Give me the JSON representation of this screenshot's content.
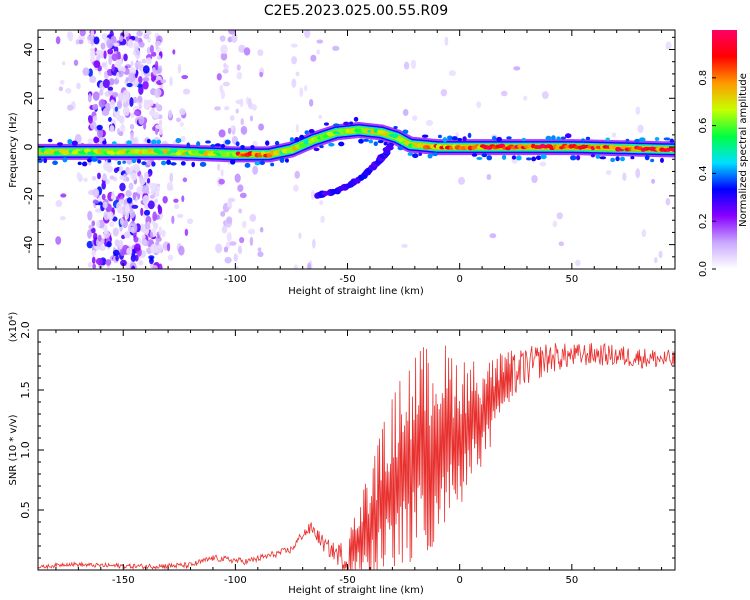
{
  "title": "C2E5.2023.025.00.55.R09",
  "chart_data": [
    {
      "type": "heatmap",
      "name": "spectrogram",
      "xlabel": "Height of straight line (km)",
      "ylabel": "Frequency (Hz)",
      "xlim": [
        -188,
        96
      ],
      "ylim": [
        -50,
        48
      ],
      "xticks": [
        -150,
        -100,
        -50,
        0,
        50
      ],
      "yticks": [
        -40,
        -20,
        0,
        20,
        40
      ],
      "ridge": [
        {
          "x": -188,
          "y": -2
        },
        {
          "x": -150,
          "y": -2
        },
        {
          "x": -130,
          "y": -2
        },
        {
          "x": -100,
          "y": -3
        },
        {
          "x": -85,
          "y": -3
        },
        {
          "x": -75,
          "y": -1
        },
        {
          "x": -65,
          "y": 3
        },
        {
          "x": -55,
          "y": 6
        },
        {
          "x": -45,
          "y": 7
        },
        {
          "x": -35,
          "y": 6
        },
        {
          "x": -28,
          "y": 4
        },
        {
          "x": -22,
          "y": 1
        },
        {
          "x": -10,
          "y": 0
        },
        {
          "x": 10,
          "y": 0
        },
        {
          "x": 50,
          "y": 0
        },
        {
          "x": 96,
          "y": -1
        }
      ],
      "branch": [
        {
          "x": -64,
          "y": -20
        },
        {
          "x": -55,
          "y": -18
        },
        {
          "x": -48,
          "y": -15
        },
        {
          "x": -42,
          "y": -11
        },
        {
          "x": -37,
          "y": -7
        },
        {
          "x": -33,
          "y": -3
        },
        {
          "x": -31,
          "y": 1
        }
      ],
      "colorbar": {
        "label": "Normalized spectral amplitude",
        "ticks": [
          "0.0",
          "0.2",
          "0.4",
          "0.6",
          "0.8"
        ],
        "tick_values": [
          0,
          0.2,
          0.4,
          0.6,
          0.8
        ],
        "range": [
          0,
          1
        ],
        "colors": [
          "#ffffff",
          "#c9a8ff",
          "#8800ff",
          "#0000ff",
          "#00e0ff",
          "#00ff40",
          "#c8ff00",
          "#ff9900",
          "#ff0000",
          "#ff0066"
        ]
      }
    },
    {
      "type": "line",
      "name": "snr",
      "xlabel": "Height of straight line (km)",
      "ylabel": "SNR (10 * v/v)",
      "multiplier": "(x10⁴)",
      "xlim": [
        -188,
        96
      ],
      "ylim": [
        0,
        2.0
      ],
      "xticks": [
        -150,
        -100,
        -50,
        0,
        50
      ],
      "yticks": [
        0.5,
        1.0,
        1.5,
        2.0
      ],
      "ytick_labels": [
        "0.5",
        "1.0",
        "1.5",
        "2.0"
      ],
      "color": "#e8312f",
      "envelope": [
        {
          "x": -188,
          "y": 0.02
        },
        {
          "x": -175,
          "y": 0.05
        },
        {
          "x": -165,
          "y": 0.04
        },
        {
          "x": -140,
          "y": 0.03
        },
        {
          "x": -120,
          "y": 0.04
        },
        {
          "x": -110,
          "y": 0.1
        },
        {
          "x": -95,
          "y": 0.07
        },
        {
          "x": -85,
          "y": 0.12
        },
        {
          "x": -75,
          "y": 0.17
        },
        {
          "x": -70,
          "y": 0.3
        },
        {
          "x": -66,
          "y": 0.35
        },
        {
          "x": -60,
          "y": 0.2
        },
        {
          "x": -50,
          "y": 0.08
        },
        {
          "x": -45,
          "y": 0.25
        },
        {
          "x": -38,
          "y": 0.45
        },
        {
          "x": -30,
          "y": 0.7
        },
        {
          "x": -22,
          "y": 0.9
        },
        {
          "x": -15,
          "y": 1.0
        },
        {
          "x": -8,
          "y": 1.1
        },
        {
          "x": 0,
          "y": 1.15
        },
        {
          "x": 10,
          "y": 1.3
        },
        {
          "x": 20,
          "y": 1.55
        },
        {
          "x": 28,
          "y": 1.68
        },
        {
          "x": 40,
          "y": 1.77
        },
        {
          "x": 60,
          "y": 1.8
        },
        {
          "x": 80,
          "y": 1.77
        },
        {
          "x": 96,
          "y": 1.75
        }
      ],
      "noise": [
        {
          "x": -188,
          "a": 0.015
        },
        {
          "x": -75,
          "a": 0.03
        },
        {
          "x": -55,
          "a": 0.08
        },
        {
          "x": -45,
          "a": 0.3
        },
        {
          "x": -30,
          "a": 0.7
        },
        {
          "x": -20,
          "a": 0.85
        },
        {
          "x": -5,
          "a": 0.7
        },
        {
          "x": 10,
          "a": 0.4
        },
        {
          "x": 25,
          "a": 0.18
        },
        {
          "x": 50,
          "a": 0.1
        },
        {
          "x": 96,
          "a": 0.08
        }
      ]
    }
  ]
}
